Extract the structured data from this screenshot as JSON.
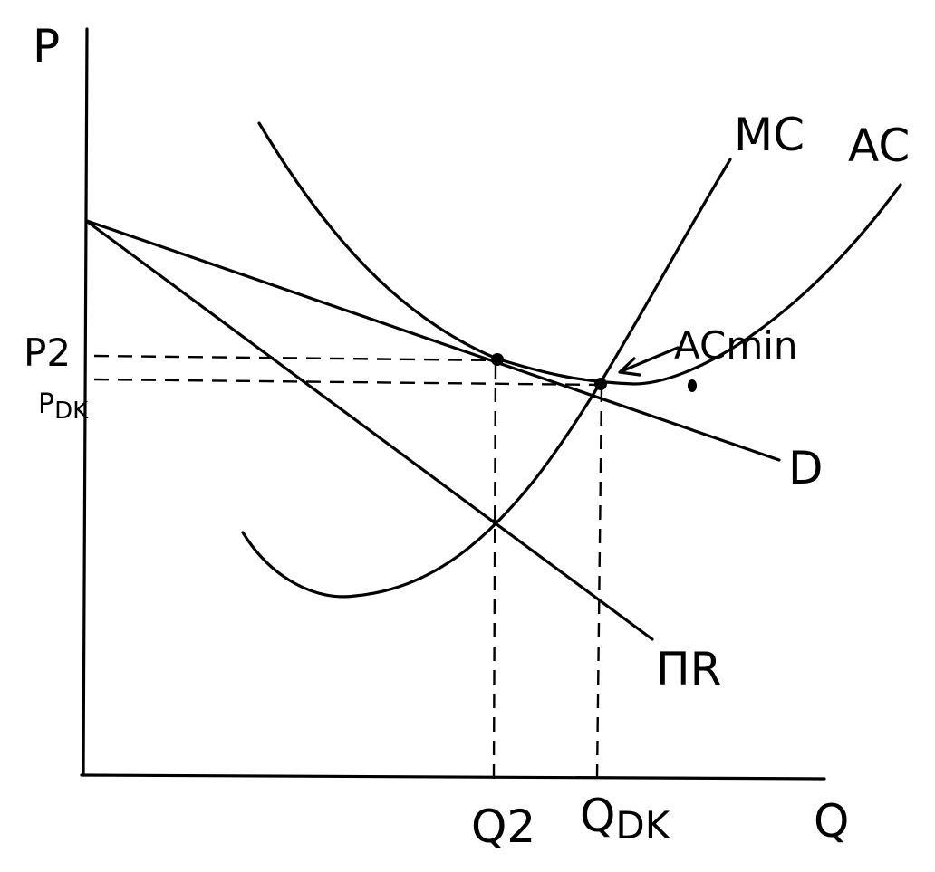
{
  "axes": {
    "y_label": "P",
    "x_label": "Q"
  },
  "curves": {
    "mc": "MC",
    "ac": "AC",
    "demand": "D",
    "marginal_revenue": "ΠR"
  },
  "annotations": {
    "ac_min": "ACmin"
  },
  "price_labels": {
    "p2": {
      "main": "P",
      "sub": "2"
    },
    "pdk": {
      "main": "P",
      "sub": "DK"
    }
  },
  "quantity_labels": {
    "q2": {
      "main": "Q",
      "sub": "2"
    },
    "qdk": {
      "main": "Q",
      "sub": "DK"
    }
  },
  "colors": {
    "ink": "#000000",
    "paper": "#ffffff"
  }
}
